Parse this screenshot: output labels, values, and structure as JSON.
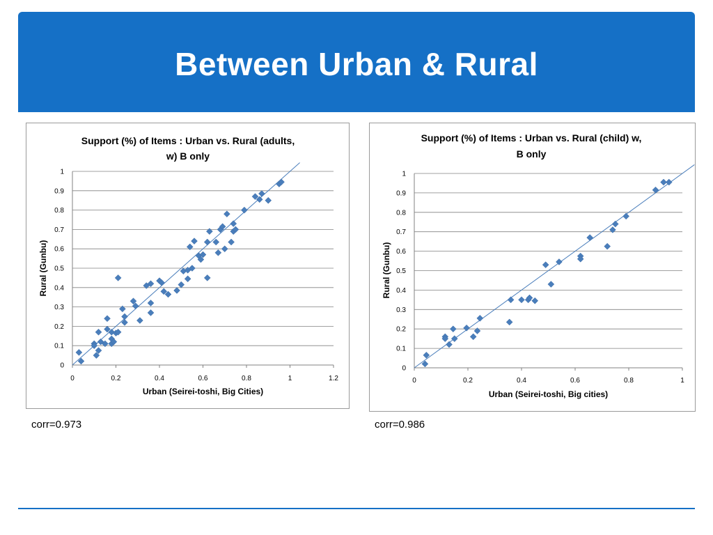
{
  "slide": {
    "title": "Between Urban & Rural"
  },
  "stats": {
    "left_corr": "corr=0.973",
    "right_corr": "corr=0.986"
  },
  "colors": {
    "header": "#1570c6",
    "marker": "#4a7ebb",
    "diagonal": "#4a7ebb",
    "grid": "#808080"
  },
  "chart_data": [
    {
      "type": "scatter",
      "title_lines": [
        "Support (%) of Items :  Urban vs. Rural (adults,",
        "w) B only"
      ],
      "xlabel": "Urban (Seirei-toshi, Big Cities)",
      "ylabel": "Rural (Gunbu)",
      "xlim": [
        0,
        1.2
      ],
      "ylim": [
        0,
        1
      ],
      "xticks": [
        "0",
        "0.2",
        "0.4",
        "0.6",
        "0.8",
        "1",
        "1.2"
      ],
      "yticks": [
        "0",
        "0.1",
        "0.2",
        "0.3",
        "0.4",
        "0.5",
        "0.6",
        "0.7",
        "0.8",
        "0.9",
        "1"
      ],
      "grid": "horizontal",
      "reference_line": "y=x",
      "points": [
        [
          0.03,
          0.065
        ],
        [
          0.04,
          0.02
        ],
        [
          0.1,
          0.11
        ],
        [
          0.1,
          0.1
        ],
        [
          0.11,
          0.05
        ],
        [
          0.12,
          0.17
        ],
        [
          0.12,
          0.075
        ],
        [
          0.13,
          0.12
        ],
        [
          0.15,
          0.11
        ],
        [
          0.16,
          0.185
        ],
        [
          0.16,
          0.24
        ],
        [
          0.18,
          0.11
        ],
        [
          0.18,
          0.135
        ],
        [
          0.18,
          0.17
        ],
        [
          0.19,
          0.12
        ],
        [
          0.2,
          0.165
        ],
        [
          0.21,
          0.17
        ],
        [
          0.21,
          0.45
        ],
        [
          0.23,
          0.29
        ],
        [
          0.24,
          0.25
        ],
        [
          0.24,
          0.22
        ],
        [
          0.28,
          0.33
        ],
        [
          0.29,
          0.305
        ],
        [
          0.31,
          0.23
        ],
        [
          0.34,
          0.41
        ],
        [
          0.36,
          0.42
        ],
        [
          0.36,
          0.27
        ],
        [
          0.36,
          0.32
        ],
        [
          0.4,
          0.435
        ],
        [
          0.41,
          0.425
        ],
        [
          0.42,
          0.38
        ],
        [
          0.44,
          0.365
        ],
        [
          0.48,
          0.385
        ],
        [
          0.5,
          0.415
        ],
        [
          0.51,
          0.485
        ],
        [
          0.53,
          0.49
        ],
        [
          0.53,
          0.445
        ],
        [
          0.54,
          0.61
        ],
        [
          0.55,
          0.5
        ],
        [
          0.56,
          0.64
        ],
        [
          0.58,
          0.565
        ],
        [
          0.59,
          0.545
        ],
        [
          0.6,
          0.57
        ],
        [
          0.62,
          0.635
        ],
        [
          0.62,
          0.45
        ],
        [
          0.63,
          0.69
        ],
        [
          0.66,
          0.635
        ],
        [
          0.67,
          0.58
        ],
        [
          0.68,
          0.7
        ],
        [
          0.69,
          0.715
        ],
        [
          0.7,
          0.6
        ],
        [
          0.71,
          0.78
        ],
        [
          0.73,
          0.635
        ],
        [
          0.74,
          0.69
        ],
        [
          0.74,
          0.73
        ],
        [
          0.75,
          0.7
        ],
        [
          0.79,
          0.8
        ],
        [
          0.84,
          0.87
        ],
        [
          0.86,
          0.855
        ],
        [
          0.87,
          0.885
        ],
        [
          0.9,
          0.85
        ],
        [
          0.95,
          0.935
        ],
        [
          0.96,
          0.945
        ]
      ]
    },
    {
      "type": "scatter",
      "title_lines": [
        "Support (%) of Items : Urban vs. Rural   (child) w,",
        "B only"
      ],
      "xlabel": "Urban (Seirei-toshi, Big cities)",
      "ylabel": "Rural (Gunbu)",
      "xlim": [
        0,
        1
      ],
      "ylim": [
        0,
        1
      ],
      "xticks": [
        "0",
        "0.2",
        "0.4",
        "0.6",
        "0.8",
        "1"
      ],
      "yticks": [
        "0",
        "0.1",
        "0.2",
        "0.3",
        "0.4",
        "0.5",
        "0.6",
        "0.7",
        "0.8",
        "0.9",
        "1"
      ],
      "grid": "horizontal",
      "reference_line": "y=x",
      "points": [
        [
          0.04,
          0.02
        ],
        [
          0.045,
          0.065
        ],
        [
          0.115,
          0.16
        ],
        [
          0.115,
          0.15
        ],
        [
          0.13,
          0.12
        ],
        [
          0.145,
          0.2
        ],
        [
          0.15,
          0.15
        ],
        [
          0.195,
          0.205
        ],
        [
          0.22,
          0.16
        ],
        [
          0.235,
          0.19
        ],
        [
          0.245,
          0.255
        ],
        [
          0.355,
          0.235
        ],
        [
          0.36,
          0.35
        ],
        [
          0.4,
          0.35
        ],
        [
          0.425,
          0.35
        ],
        [
          0.43,
          0.36
        ],
        [
          0.45,
          0.345
        ],
        [
          0.49,
          0.53
        ],
        [
          0.51,
          0.43
        ],
        [
          0.54,
          0.545
        ],
        [
          0.62,
          0.575
        ],
        [
          0.62,
          0.56
        ],
        [
          0.655,
          0.67
        ],
        [
          0.72,
          0.625
        ],
        [
          0.74,
          0.71
        ],
        [
          0.75,
          0.74
        ],
        [
          0.79,
          0.78
        ],
        [
          0.9,
          0.915
        ],
        [
          0.93,
          0.955
        ],
        [
          0.95,
          0.955
        ]
      ]
    }
  ]
}
